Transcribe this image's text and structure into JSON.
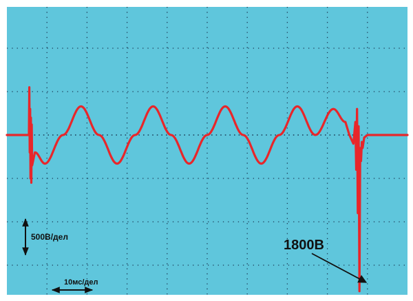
{
  "chart_data": {
    "type": "line",
    "title": "",
    "xlabel": "",
    "ylabel": "",
    "grid": true,
    "grid_divisions": {
      "x": 10,
      "y": 8
    },
    "x_units": "ms",
    "y_units": "V",
    "xlim": [
      0,
      100
    ],
    "ylim": [
      -1000,
      1000
    ],
    "annotations": {
      "voltage_scale": "500В/дел",
      "time_scale": "10мс/дел",
      "peak_label": "1800В"
    },
    "series": [
      {
        "color": "#e8262a",
        "x": [
          0,
          5.5,
          5.6,
          5.7,
          5.8,
          5.9,
          6.0,
          6.1,
          6.2,
          6.3,
          7,
          9.5,
          14,
          18.5,
          23,
          27.5,
          32,
          36.5,
          41,
          45.5,
          50,
          54.5,
          59,
          63.5,
          68,
          72.5,
          77,
          81.5,
          84.5,
          85.5,
          86.5,
          87.0,
          87.2,
          87.4,
          87.6,
          87.8,
          88.0,
          88.2,
          88.4,
          88.6,
          88.8,
          89.2,
          90,
          92,
          100
        ],
        "values": [
          0,
          0,
          550,
          -200,
          300,
          -500,
          200,
          -550,
          120,
          -350,
          -200,
          -330,
          0,
          330,
          0,
          -330,
          0,
          330,
          0,
          -330,
          0,
          330,
          0,
          -330,
          0,
          330,
          0,
          300,
          150,
          0,
          -100,
          150,
          -400,
          300,
          -900,
          100,
          -1800,
          -150,
          -300,
          -80,
          -150,
          -30,
          0,
          0,
          0
        ]
      }
    ]
  }
}
